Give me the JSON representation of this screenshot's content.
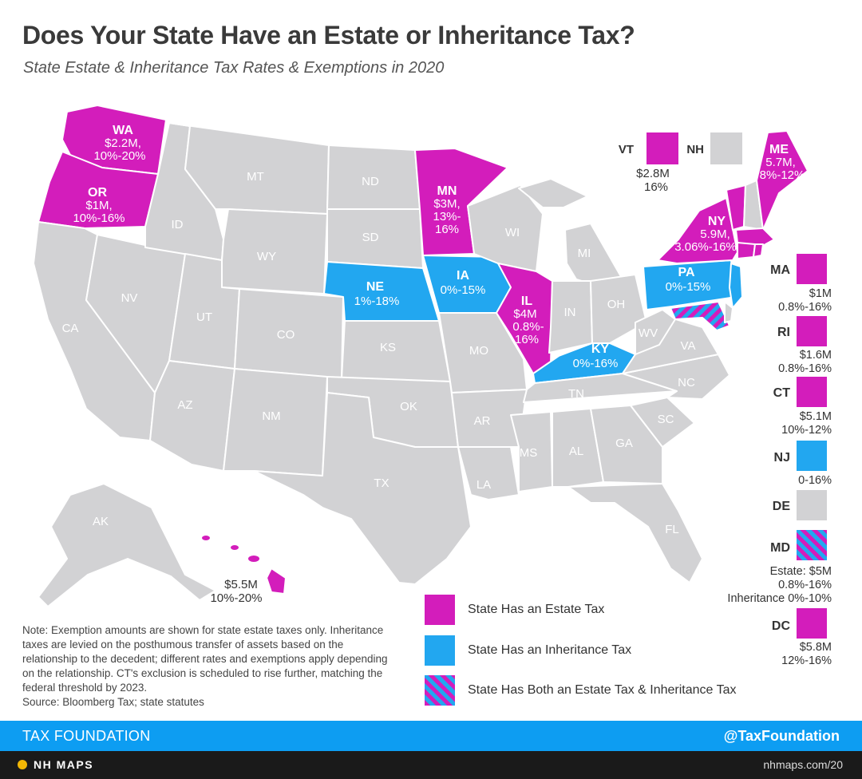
{
  "header": {
    "title": "Does Your State Have an Estate or Inheritance Tax?",
    "subtitle": "State Estate & Inheritance Tax Rates & Exemptions in 2020"
  },
  "colors": {
    "estate": "#d31dbb",
    "inheritance": "#22a7f0",
    "none": "#d2d2d4",
    "footer": "#0d9df2"
  },
  "map_labels": {
    "WA": {
      "abbr": "WA",
      "exemption": "$2.2M,",
      "rate": "10%-20%"
    },
    "OR": {
      "abbr": "OR",
      "exemption": "$1M,",
      "rate": "10%-16%"
    },
    "MN": {
      "abbr": "MN",
      "exemption": "$3M,",
      "rate1": "13%-",
      "rate2": "16%"
    },
    "IL": {
      "abbr": "IL",
      "exemption": "$4M",
      "rate1": "0.8%-",
      "rate2": "16%"
    },
    "NY": {
      "abbr": "NY",
      "exemption": "5.9M,",
      "rate": "3.06%-16%"
    },
    "ME": {
      "abbr": "ME",
      "exemption": "5.7M,",
      "rate": "8%-12%"
    },
    "NE": {
      "abbr": "NE",
      "rate": "1%-18%"
    },
    "IA": {
      "abbr": "IA",
      "rate": "0%-15%"
    },
    "KY": {
      "abbr": "KY",
      "rate": "0%-16%"
    },
    "PA": {
      "abbr": "PA",
      "rate": "0%-15%"
    },
    "HI": {
      "exemption": "$5.5M",
      "rate": "10%-20%"
    },
    "VT": {
      "abbr": "VT",
      "exemption": "$2.8M",
      "rate": "16%"
    },
    "NH": {
      "abbr": "NH"
    },
    "gray": [
      "MT",
      "ND",
      "ID",
      "SD",
      "WY",
      "WI",
      "MI",
      "NV",
      "UT",
      "CO",
      "CA",
      "KS",
      "MO",
      "IN",
      "OH",
      "WV",
      "VA",
      "AZ",
      "NM",
      "OK",
      "TN",
      "NC",
      "AR",
      "SC",
      "MS",
      "AL",
      "GA",
      "TX",
      "LA",
      "FL",
      "AK"
    ]
  },
  "side_states": {
    "MA": {
      "abbr": "MA",
      "line1": "$1M",
      "line2": "0.8%-16%"
    },
    "RI": {
      "abbr": "RI",
      "line1": "$1.6M",
      "line2": "0.8%-16%"
    },
    "CT": {
      "abbr": "CT",
      "line1": "$5.1M",
      "line2": "10%-12%"
    },
    "NJ": {
      "abbr": "NJ",
      "line1": "0-16%"
    },
    "DE": {
      "abbr": "DE"
    },
    "MD": {
      "abbr": "MD",
      "line1": "Estate: $5M",
      "line2": "0.8%-16%",
      "line3": "Inheritance 0%-10%"
    },
    "DC": {
      "abbr": "DC",
      "line1": "$5.8M",
      "line2": "12%-16%"
    }
  },
  "legend": {
    "estate": "State Has an Estate Tax",
    "inheritance": "State Has an Inheritance Tax",
    "both": "State Has Both an Estate Tax & Inheritance Tax"
  },
  "note": "Note: Exemption amounts are shown for state estate taxes only. Inheritance taxes are levied on the posthumous transfer of assets based on the relationship to the decedent; different rates and exemptions apply depending on the relationship. CT's exclusion is scheduled to rise further, matching the federal threshold by 2023.",
  "source": "Source: Bloomberg Tax; state statutes",
  "footer": {
    "left": "TAX FOUNDATION",
    "right": "@TaxFoundation"
  },
  "bottom_bar": {
    "left": "NH MAPS",
    "right": "nhmaps.com/20"
  }
}
